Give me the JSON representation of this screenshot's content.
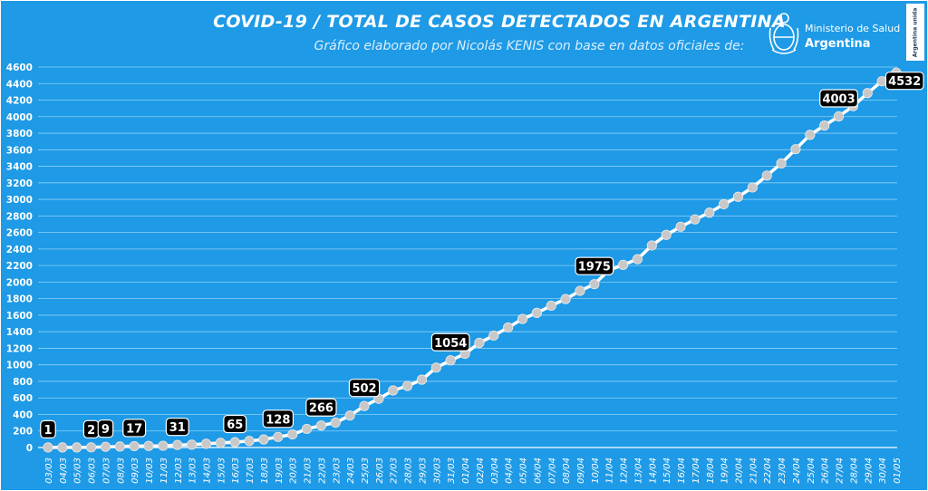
{
  "header": {
    "title": "COVID-19  /  TOTAL DE CASOS DETECTADOS EN ARGENTINA",
    "subtitle": "Gráfico elaborado por Nicolás KENIS con base en datos oficiales de:"
  },
  "logo": {
    "line1": "Ministerio de Salud",
    "line2": "Argentina",
    "icon": "coat-of-arms-icon"
  },
  "badge": {
    "text": "Argentina unida"
  },
  "colors": {
    "background": "#1e9ae6",
    "line": "#ffffff",
    "marker": "#c8c8c8",
    "label_bg": "#000000"
  },
  "chart_data": {
    "type": "line",
    "title": "COVID-19  /  TOTAL DE CASOS DETECTADOS EN ARGENTINA",
    "xlabel": "",
    "ylabel": "",
    "ylim": [
      0,
      4600
    ],
    "yticks": [
      0,
      200,
      400,
      600,
      800,
      1000,
      1200,
      1400,
      1600,
      1800,
      2000,
      2200,
      2400,
      2600,
      2800,
      3000,
      3200,
      3400,
      3600,
      3800,
      4000,
      4200,
      4400,
      4600
    ],
    "grid": true,
    "x": [
      "03/03",
      "04/03",
      "05/03",
      "06/03",
      "07/03",
      "08/03",
      "09/03",
      "10/03",
      "11/03",
      "12/03",
      "13/03",
      "14/03",
      "15/03",
      "16/03",
      "17/03",
      "18/03",
      "19/03",
      "20/03",
      "21/03",
      "22/03",
      "23/03",
      "24/03",
      "25/03",
      "26/03",
      "27/03",
      "28/03",
      "29/03",
      "30/03",
      "31/03",
      "01/04",
      "02/04",
      "03/04",
      "04/04",
      "05/04",
      "06/04",
      "07/04",
      "08/04",
      "09/04",
      "10/04",
      "11/04",
      "12/04",
      "13/04",
      "14/04",
      "15/04",
      "16/04",
      "17/04",
      "18/04",
      "19/04",
      "20/04",
      "21/04",
      "22/04",
      "23/04",
      "24/04",
      "25/04",
      "26/04",
      "27/04",
      "28/04",
      "29/04",
      "30/04",
      "01/05"
    ],
    "values": [
      1,
      1,
      1,
      2,
      9,
      12,
      17,
      19,
      21,
      31,
      34,
      45,
      56,
      65,
      79,
      97,
      128,
      158,
      225,
      266,
      301,
      387,
      502,
      589,
      690,
      745,
      820,
      966,
      1054,
      1133,
      1265,
      1353,
      1451,
      1554,
      1628,
      1715,
      1795,
      1894,
      1975,
      2142,
      2208,
      2277,
      2443,
      2571,
      2669,
      2758,
      2839,
      2941,
      3031,
      3144,
      3288,
      3435,
      3607,
      3780,
      3892,
      4003,
      4127,
      4285,
      4428,
      4532
    ],
    "labels": [
      {
        "index": 0,
        "text": "1"
      },
      {
        "index": 3,
        "text": "2"
      },
      {
        "index": 4,
        "text": "9"
      },
      {
        "index": 6,
        "text": "17"
      },
      {
        "index": 9,
        "text": "31"
      },
      {
        "index": 13,
        "text": "65"
      },
      {
        "index": 16,
        "text": "128"
      },
      {
        "index": 19,
        "text": "266"
      },
      {
        "index": 22,
        "text": "502"
      },
      {
        "index": 28,
        "text": "1054"
      },
      {
        "index": 38,
        "text": "1975"
      },
      {
        "index": 55,
        "text": "4003"
      },
      {
        "index": 59,
        "text": "4532"
      }
    ]
  }
}
